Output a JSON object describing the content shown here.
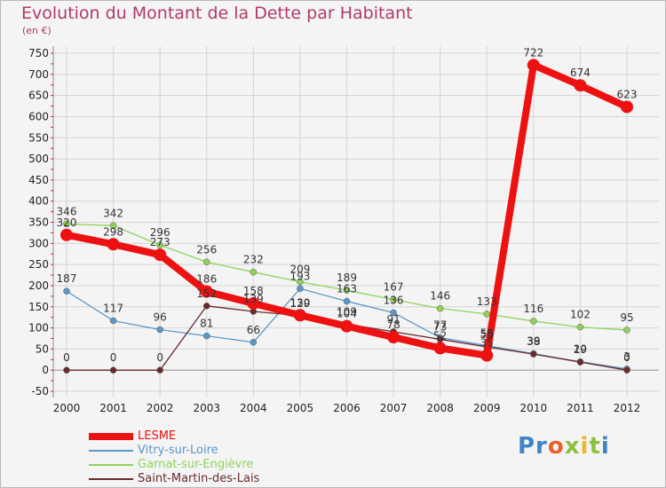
{
  "header": {
    "title": "Evolution du Montant de la Dette par Habitant",
    "unit": "(en €)"
  },
  "logo": {
    "text": "Proxiti"
  },
  "colors": {
    "title": "#b03a6b",
    "axis": "#8a8a8a",
    "grid": "#d4d4d4",
    "zero_line": "#9a9a9a",
    "axis_dashes": "#cc2a2a"
  },
  "chart_data": {
    "type": "line",
    "title": "Evolution du Montant de la Dette par Habitant",
    "subtitle": "(en €)",
    "xlabel": "",
    "ylabel": "",
    "x": [
      2000,
      2001,
      2002,
      2003,
      2004,
      2005,
      2006,
      2007,
      2008,
      2009,
      2010,
      2011,
      2012
    ],
    "ylim": [
      -50,
      750
    ],
    "yticks": [
      -50,
      0,
      50,
      100,
      150,
      200,
      250,
      300,
      350,
      400,
      450,
      500,
      550,
      600,
      650,
      700,
      750
    ],
    "grid": true,
    "legend_position": "bottom-left",
    "series": [
      {
        "name": "LESME",
        "color": "#ee1111",
        "width": 8,
        "marker": 7,
        "values": [
          320,
          298,
          273,
          186,
          158,
          130,
          104,
          78,
          52,
          35,
          722,
          674,
          623
        ]
      },
      {
        "name": "Vitry-sur-Loire",
        "color": "#5b97c9",
        "width": 1.3,
        "marker": 3.5,
        "values": [
          187,
          117,
          96,
          81,
          66,
          193,
          163,
          136,
          77,
          58,
          39,
          20,
          3
        ]
      },
      {
        "name": "Garnat-sur-Engièvre",
        "color": "#8fd35a",
        "width": 1.3,
        "marker": 3.5,
        "values": [
          346,
          342,
          296,
          256,
          232,
          209,
          189,
          167,
          146,
          133,
          116,
          102,
          95
        ]
      },
      {
        "name": "Saint-Martin-des-Lais",
        "color": "#6b2a2a",
        "width": 1.3,
        "marker": 3.5,
        "values": [
          0,
          0,
          0,
          152,
          139,
          129,
          109,
          91,
          73,
          55,
          38,
          19,
          0
        ]
      }
    ],
    "data_labels": [
      {
        "series": "LESME",
        "labels": [
          "320",
          "298",
          "273",
          "186",
          "158",
          "130",
          "104",
          "78",
          "52",
          "35",
          "722",
          "674",
          "623"
        ]
      },
      {
        "series": "Vitry-sur-Loire",
        "labels": [
          "187",
          "117",
          "96",
          "81",
          "66",
          "193",
          "163",
          "136",
          "77",
          "58",
          "39",
          "20",
          "3"
        ]
      },
      {
        "series": "Garnat-sur-Engièvre",
        "labels": [
          "346",
          "342",
          "296",
          "256",
          "232",
          "209",
          "189",
          "167",
          "146",
          "133",
          "116",
          "102",
          "95"
        ]
      },
      {
        "series": "Saint-Martin-des-Lais",
        "labels": [
          "0",
          "0",
          "0",
          "152",
          "139",
          "129",
          "109",
          "91",
          "73",
          "55",
          "38",
          "19",
          "0"
        ]
      }
    ]
  }
}
